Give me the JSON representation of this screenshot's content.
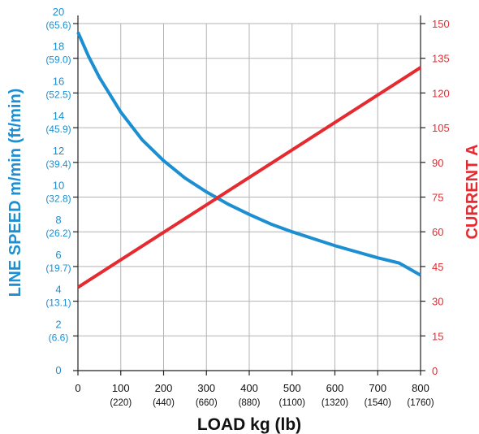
{
  "chart_data": {
    "type": "line",
    "xlabel": "LOAD kg (lb)",
    "ylabel_left": "LINE SPEED m/min (ft/min)",
    "ylabel_right": "CURRENT A",
    "xlim": [
      0,
      800
    ],
    "ylim_left": [
      0,
      20
    ],
    "ylim_right": [
      0,
      150
    ],
    "grid": true,
    "x_ticks": [
      {
        "value": 0,
        "label": "0",
        "sub": ""
      },
      {
        "value": 100,
        "label": "100",
        "sub": "(220)"
      },
      {
        "value": 200,
        "label": "200",
        "sub": "(440)"
      },
      {
        "value": 300,
        "label": "300",
        "sub": "(660)"
      },
      {
        "value": 400,
        "label": "400",
        "sub": "(880)"
      },
      {
        "value": 500,
        "label": "500",
        "sub": "(1100)"
      },
      {
        "value": 600,
        "label": "600",
        "sub": "(1320)"
      },
      {
        "value": 700,
        "label": "700",
        "sub": "(1540)"
      },
      {
        "value": 800,
        "label": "800",
        "sub": "(1760)"
      }
    ],
    "y_left_ticks": [
      {
        "value": 0,
        "label": "0",
        "sub": ""
      },
      {
        "value": 2,
        "label": "2",
        "sub": "(6.6)"
      },
      {
        "value": 4,
        "label": "4",
        "sub": "(13.1)"
      },
      {
        "value": 6,
        "label": "6",
        "sub": "(19.7)"
      },
      {
        "value": 8,
        "label": "8",
        "sub": "(26.2)"
      },
      {
        "value": 10,
        "label": "10",
        "sub": "(32.8)"
      },
      {
        "value": 12,
        "label": "12",
        "sub": "(39.4)"
      },
      {
        "value": 14,
        "label": "14",
        "sub": "(45.9)"
      },
      {
        "value": 16,
        "label": "16",
        "sub": "(52.5)"
      },
      {
        "value": 18,
        "label": "18",
        "sub": "(59.0)"
      },
      {
        "value": 20,
        "label": "20",
        "sub": "(65.6)"
      }
    ],
    "y_right_ticks": [
      {
        "value": 0,
        "label": "0"
      },
      {
        "value": 15,
        "label": "15"
      },
      {
        "value": 30,
        "label": "30"
      },
      {
        "value": 45,
        "label": "45"
      },
      {
        "value": 60,
        "label": "60"
      },
      {
        "value": 75,
        "label": "75"
      },
      {
        "value": 90,
        "label": "90"
      },
      {
        "value": 105,
        "label": "105"
      },
      {
        "value": 120,
        "label": "120"
      },
      {
        "value": 135,
        "label": "135"
      },
      {
        "value": 150,
        "label": "150"
      }
    ],
    "series": [
      {
        "axis": "left",
        "color": "#1b8fd2",
        "x": [
          0,
          25,
          50,
          100,
          150,
          200,
          250,
          300,
          350,
          400,
          450,
          500,
          550,
          600,
          650,
          700,
          750,
          800
        ],
        "y": [
          19.5,
          18.1,
          16.9,
          14.9,
          13.3,
          12.1,
          11.1,
          10.3,
          9.6,
          9.0,
          8.45,
          8.0,
          7.6,
          7.2,
          6.85,
          6.5,
          6.2,
          5.5
        ]
      },
      {
        "axis": "right",
        "color": "#e52a30",
        "x": [
          0,
          800
        ],
        "y": [
          36,
          131
        ]
      }
    ]
  }
}
